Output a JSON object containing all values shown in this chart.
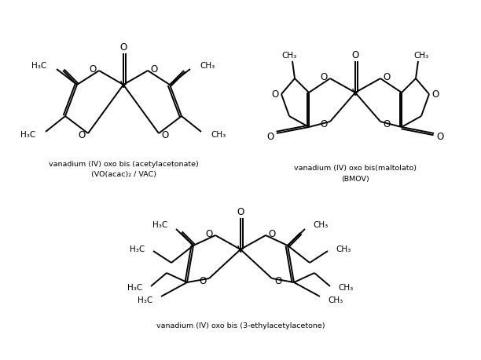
{
  "bg_color": "#ffffff",
  "line_color": "#000000",
  "text_color": "#000000",
  "label1_line1": "vanadium (IV) oxo bis (acetylacetonate)",
  "label1_line2": "(VO(acac)₂ / VAC)",
  "label2_line1": "vanadium (IV) oxo bis(maltolato)",
  "label2_line2": "(BMOV)",
  "label3": "vanadium (IV) oxo bis (3-ethylacetylacetone)"
}
